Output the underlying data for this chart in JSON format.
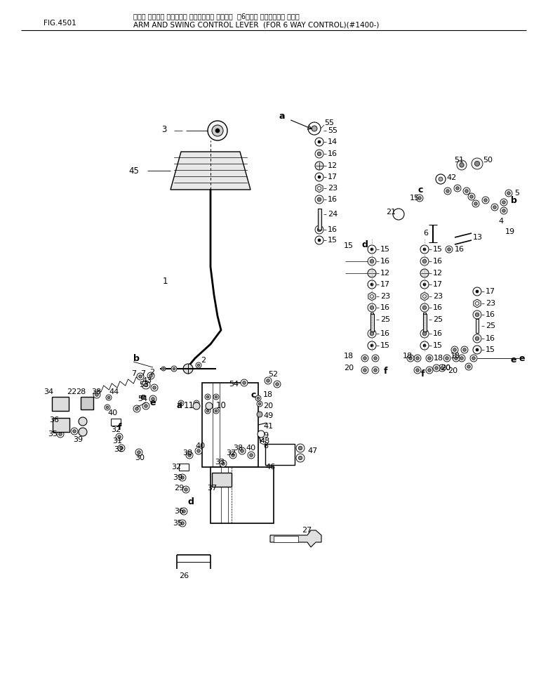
{
  "title_line1": "アーム オレビ゚ スイング コントロール レバー  （6ウェイ コントロール ヨリ）",
  "title_line2": "ARM AND SWING CONTROL LEVER  (FOR 6 WAY CONTROL)(#1400-)",
  "fig_label": "FIG.4501",
  "bg_color": "#ffffff",
  "line_color": "#000000",
  "figw": 7.71,
  "figh": 9.71,
  "dpi": 100
}
